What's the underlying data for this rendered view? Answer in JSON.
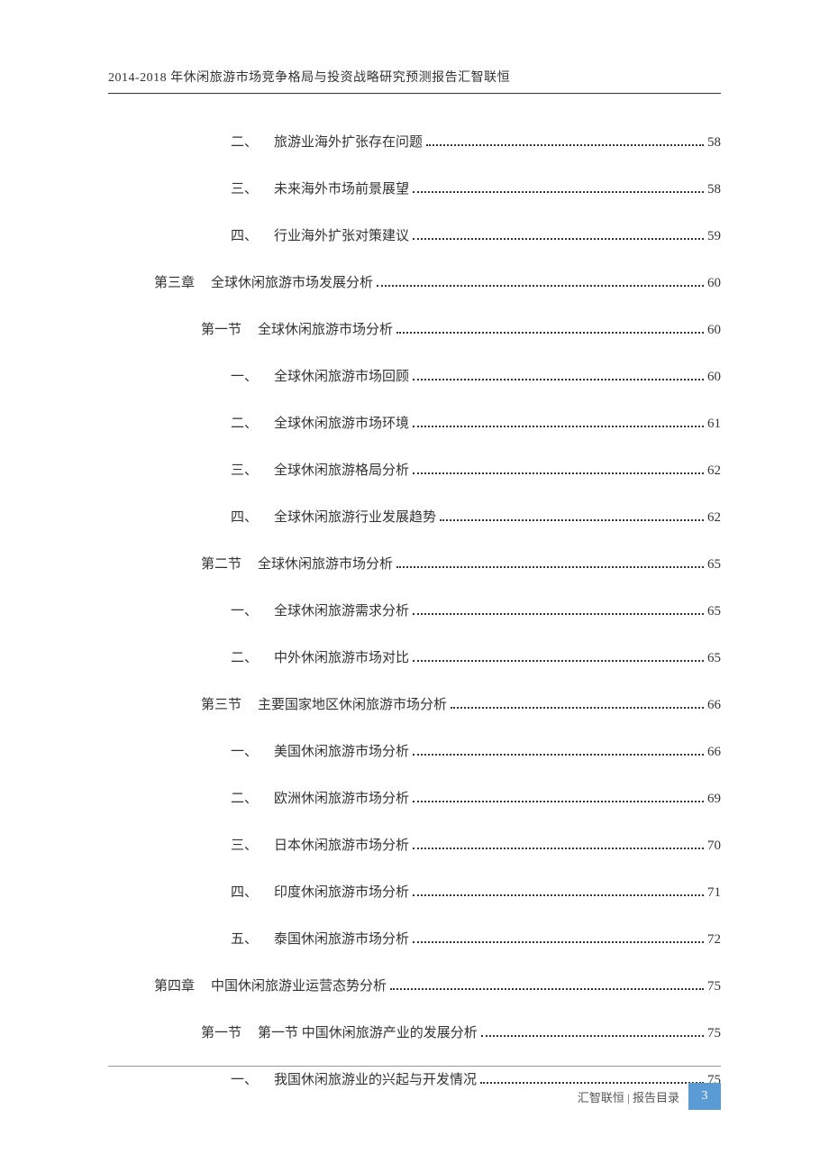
{
  "header": {
    "title": "2014-2018 年休闲旅游市场竞争格局与投资战略研究预测报告汇智联恒"
  },
  "toc": [
    {
      "level": "item",
      "label": "二、",
      "text": "旅游业海外扩张存在问题",
      "page": "58"
    },
    {
      "level": "item",
      "label": "三、",
      "text": "未来海外市场前景展望",
      "page": "58"
    },
    {
      "level": "item",
      "label": "四、",
      "text": "行业海外扩张对策建议",
      "page": "59"
    },
    {
      "level": "chapter",
      "label": "第三章",
      "text": "全球休闲旅游市场发展分析",
      "page": "60"
    },
    {
      "level": "section",
      "label": "第一节",
      "text": "全球休闲旅游市场分析",
      "page": "60"
    },
    {
      "level": "item",
      "label": "一、",
      "text": "全球休闲旅游市场回顾",
      "page": "60"
    },
    {
      "level": "item",
      "label": "二、",
      "text": "全球休闲旅游市场环境",
      "page": "61"
    },
    {
      "level": "item",
      "label": "三、",
      "text": "全球休闲旅游格局分析",
      "page": "62"
    },
    {
      "level": "item",
      "label": "四、",
      "text": "全球休闲旅游行业发展趋势",
      "page": "62"
    },
    {
      "level": "section",
      "label": "第二节",
      "text": "全球休闲旅游市场分析",
      "page": "65"
    },
    {
      "level": "item",
      "label": "一、",
      "text": "全球休闲旅游需求分析",
      "page": "65"
    },
    {
      "level": "item",
      "label": "二、",
      "text": "中外休闲旅游市场对比",
      "page": "65"
    },
    {
      "level": "section",
      "label": "第三节",
      "text": "主要国家地区休闲旅游市场分析",
      "page": "66"
    },
    {
      "level": "item",
      "label": "一、",
      "text": "美国休闲旅游市场分析",
      "page": "66"
    },
    {
      "level": "item",
      "label": "二、",
      "text": "欧洲休闲旅游市场分析",
      "page": "69"
    },
    {
      "level": "item",
      "label": "三、",
      "text": "日本休闲旅游市场分析",
      "page": "70"
    },
    {
      "level": "item",
      "label": "四、",
      "text": "印度休闲旅游市场分析",
      "page": "71"
    },
    {
      "level": "item",
      "label": "五、",
      "text": "泰国休闲旅游市场分析",
      "page": "72"
    },
    {
      "level": "chapter",
      "label": "第四章",
      "text": "中国休闲旅游业运营态势分析",
      "page": "75"
    },
    {
      "level": "section",
      "label": "第一节",
      "text": "第一节 中国休闲旅游产业的发展分析",
      "page": "75"
    },
    {
      "level": "item",
      "label": "一、",
      "text": "我国休闲旅游业的兴起与开发情况",
      "page": "75"
    }
  ],
  "footer": {
    "text": "汇智联恒 | 报告目录",
    "page_number": "3",
    "page_box_color": "#5b9bd5"
  },
  "colors": {
    "text": "#333333",
    "footer_text": "#555555",
    "background": "#ffffff",
    "line": "#333333",
    "footer_line": "#999999"
  },
  "typography": {
    "body_font": "SimSun",
    "header_fontsize": 14,
    "toc_fontsize": 15,
    "footer_fontsize": 13
  }
}
